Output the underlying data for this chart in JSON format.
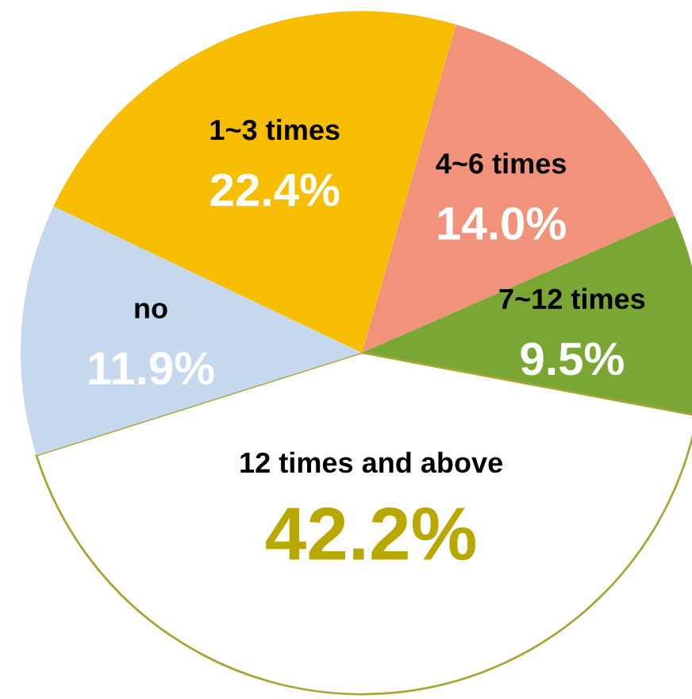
{
  "chart_data": {
    "type": "pie",
    "categories": [
      "4~6 times",
      "7~12 times",
      "12 times and above",
      "no",
      "1~3 times"
    ],
    "values": [
      14.0,
      9.5,
      42.2,
      11.9,
      22.4
    ],
    "value_labels": [
      "14.0%",
      "9.5%",
      "42.2%",
      "11.9%",
      "22.4%"
    ],
    "colors": [
      "#f0937a",
      "#7aa733",
      "#ffffff",
      "#c5d8ee",
      "#f7bd00"
    ]
  }
}
